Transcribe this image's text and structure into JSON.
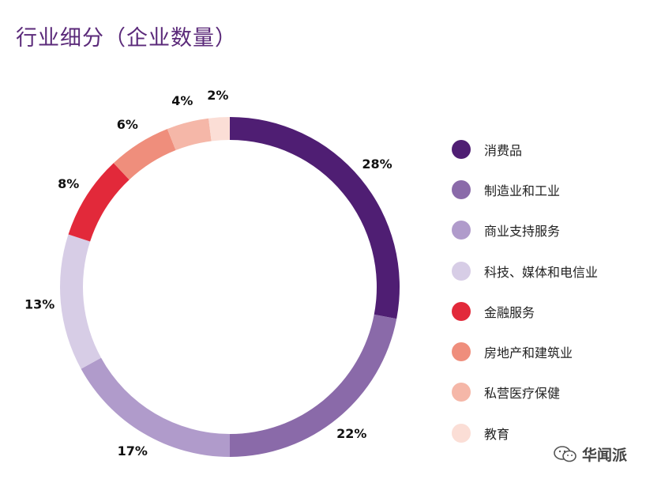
{
  "title": "行业细分（企业数量）",
  "watermark": {
    "text": "华闻派",
    "icon": "wechat-icon"
  },
  "chart_data": {
    "type": "pie",
    "variant": "donut",
    "title": "行业细分（企业数量）",
    "slices": [
      {
        "label": "消费品",
        "value": 28,
        "display": "28%",
        "color": "#4f1e73"
      },
      {
        "label": "制造业和工业",
        "value": 22,
        "display": "22%",
        "color": "#8a6aa9"
      },
      {
        "label": "商业支持服务",
        "value": 17,
        "display": "17%",
        "color": "#b09bcb"
      },
      {
        "label": "科技、媒体和电信业",
        "value": 13,
        "display": "13%",
        "color": "#d7cde6"
      },
      {
        "label": "金融服务",
        "value": 8,
        "display": "8%",
        "color": "#e2293a"
      },
      {
        "label": "房地产和建筑业",
        "value": 6,
        "display": "6%",
        "color": "#ef8e7c"
      },
      {
        "label": "私营医疗保健",
        "value": 4,
        "display": "4%",
        "color": "#f5b7a8"
      },
      {
        "label": "教育",
        "value": 2,
        "display": "2%",
        "color": "#fbded6"
      }
    ],
    "legend_position": "right"
  }
}
